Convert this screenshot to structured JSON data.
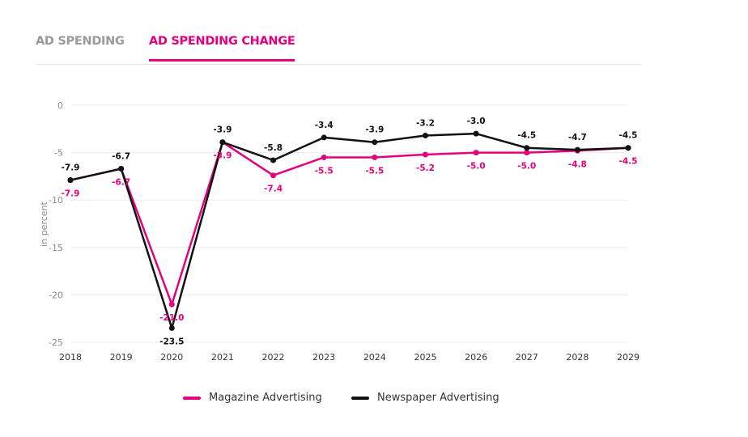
{
  "tabs": [
    {
      "label": "AD SPENDING"
    },
    {
      "label": "AD SPENDING CHANGE"
    }
  ],
  "colors": {
    "magazine": "#e6007e",
    "newspaper": "#111111",
    "grid": "#ececec",
    "axis_text": "#8a8a8a"
  },
  "chart_data": {
    "type": "line",
    "title": "",
    "xlabel": "",
    "ylabel": "in percent",
    "x": [
      "2018",
      "2019",
      "2020",
      "2021",
      "2022",
      "2023",
      "2024",
      "2025",
      "2026",
      "2027",
      "2028",
      "2029"
    ],
    "ylim": [
      -25,
      0
    ],
    "yticks": [
      "0",
      "-5",
      "-10",
      "-15",
      "-20",
      "-25"
    ],
    "grid": true,
    "legend_position": "bottom",
    "series": [
      {
        "name": "Magazine Advertising",
        "color": "#e6007e",
        "values": [
          -7.9,
          -6.7,
          -21.0,
          -3.9,
          -7.4,
          -5.5,
          -5.5,
          -5.2,
          -5.0,
          -5.0,
          -4.8,
          -4.5
        ],
        "labels": [
          "-7.9",
          "-6.7",
          "-21.0",
          "-3.9",
          "-7.4",
          "-5.5",
          "-5.5",
          "-5.2",
          "-5.0",
          "-5.0",
          "-4.8",
          "-4.5"
        ]
      },
      {
        "name": "Newspaper Advertising",
        "color": "#111111",
        "values": [
          -7.9,
          -6.7,
          -23.5,
          -3.9,
          -5.8,
          -3.4,
          -3.9,
          -3.2,
          -3.0,
          -4.5,
          -4.7,
          -4.5
        ],
        "labels": [
          "-7.9",
          "-6.7",
          "-23.5",
          "-3.9",
          "-5.8",
          "-3.4",
          "-3.9",
          "-3.2",
          "-3.0",
          "-4.5",
          "-4.7",
          "-4.5"
        ]
      }
    ]
  }
}
